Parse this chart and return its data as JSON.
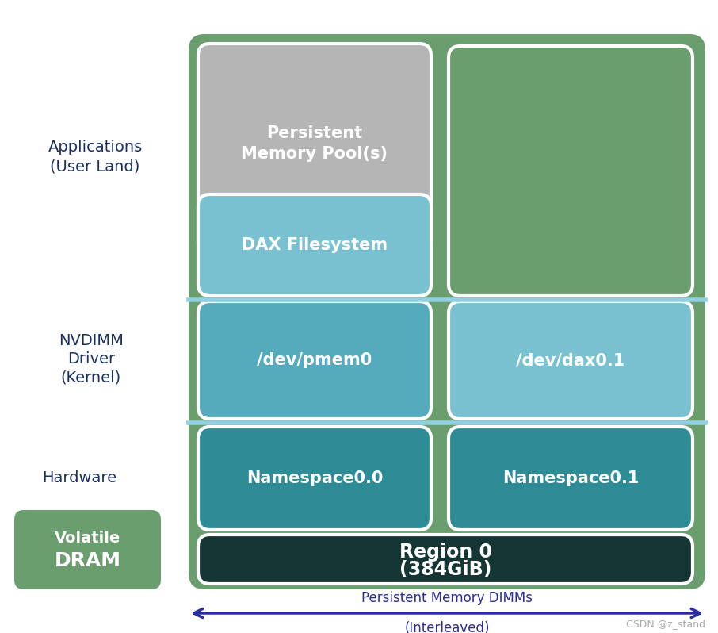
{
  "bg_color": "#ffffff",
  "fig_width": 9.06,
  "fig_height": 7.98,
  "outer_green": "#6b9e6e",
  "persistent_memory_pool_color": "#b5b5b5",
  "dax_filesystem_color": "#79c0d0",
  "dev_pmem0_color": "#55aabb",
  "dev_dax01_color": "#79c0d0",
  "namespace00_color": "#2e8c96",
  "namespace01_color": "#2e8c96",
  "region0_color": "#163535",
  "volatile_dram_color": "#6b9e6e",
  "arrow_text1": "Persistent Memory DIMMs",
  "arrow_text2": "(Interleaved)",
  "watermark": "CSDN @z_stand",
  "text_color_white": "#ffffff",
  "text_color_dark": "#1a3060"
}
